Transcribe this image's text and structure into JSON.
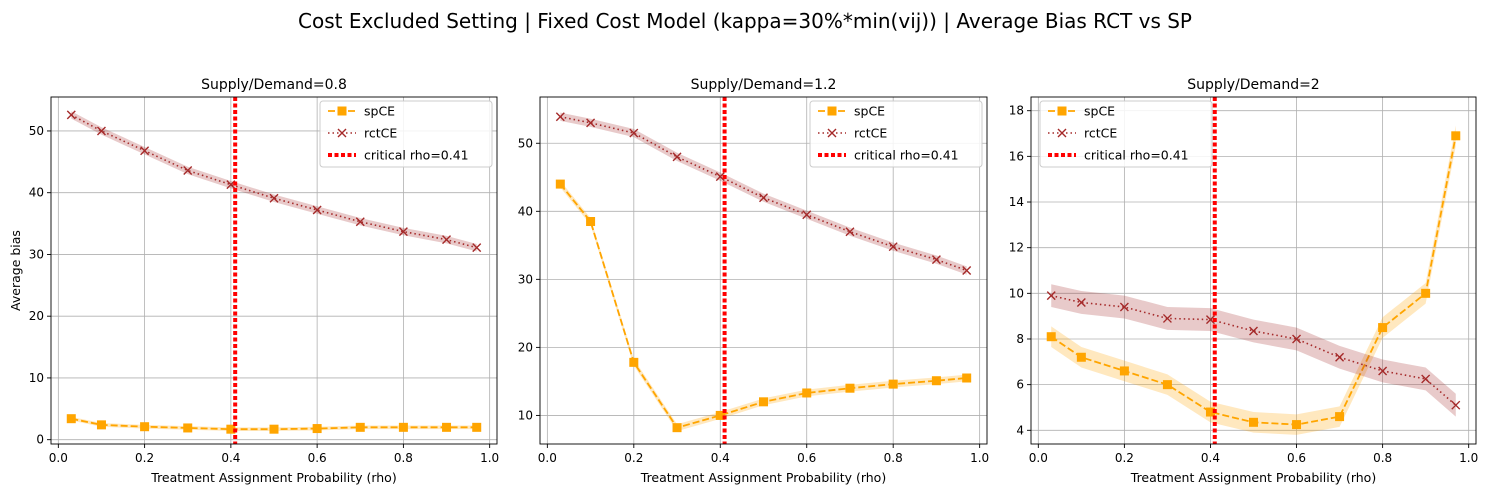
{
  "suptitle": "Cost Excluded Setting | Fixed Cost Model (kappa=30%*min(vij)) | Average Bias RCT vs SP",
  "colors": {
    "sp": "#ffa500",
    "rct": "#a52a2a",
    "critical": "#ff0000",
    "grid": "#b0b0b0"
  },
  "chart_data": [
    {
      "type": "line",
      "title": "Supply/Demand=0.8",
      "xlabel": "Treatment Assignment Probability (rho)",
      "ylabel": "Average bias",
      "xlim": [
        -0.017,
        1.017
      ],
      "ylim": [
        -0.7,
        55.5
      ],
      "xticks": [
        0.0,
        0.2,
        0.4,
        0.6,
        0.8,
        1.0
      ],
      "xtick_labels": [
        "0.0",
        "0.2",
        "0.4",
        "0.6",
        "0.8",
        "1.0"
      ],
      "yticks": [
        0,
        10,
        20,
        30,
        40,
        50
      ],
      "ytick_labels": [
        "0",
        "10",
        "20",
        "30",
        "40",
        "50"
      ],
      "grid": true,
      "legend_position": "top-right",
      "x": [
        0.03,
        0.1,
        0.2,
        0.3,
        0.4,
        0.5,
        0.6,
        0.7,
        0.8,
        0.9,
        0.97
      ],
      "series": [
        {
          "name": "spCE",
          "values": [
            3.4,
            2.4,
            2.1,
            1.9,
            1.7,
            1.7,
            1.8,
            2.0,
            2.0,
            2.0,
            2.0
          ],
          "band": 0.3
        },
        {
          "name": "rctCE",
          "values": [
            52.6,
            50.0,
            46.8,
            43.6,
            41.3,
            39.1,
            37.2,
            35.3,
            33.7,
            32.4,
            31.1
          ],
          "band": 0.6
        }
      ],
      "critical": {
        "name": "critical rho=0.41",
        "x": 0.41
      }
    },
    {
      "type": "line",
      "title": "Supply/Demand=1.2",
      "xlabel": "Treatment Assignment Probability (rho)",
      "ylabel": "",
      "xlim": [
        -0.017,
        1.017
      ],
      "ylim": [
        5.8,
        56.8
      ],
      "xticks": [
        0.0,
        0.2,
        0.4,
        0.6,
        0.8,
        1.0
      ],
      "xtick_labels": [
        "0.0",
        "0.2",
        "0.4",
        "0.6",
        "0.8",
        "1.0"
      ],
      "yticks": [
        10,
        20,
        30,
        40,
        50
      ],
      "ytick_labels": [
        "10",
        "20",
        "30",
        "40",
        "50"
      ],
      "grid": true,
      "legend_position": "top-right",
      "x": [
        0.03,
        0.1,
        0.2,
        0.3,
        0.4,
        0.5,
        0.6,
        0.7,
        0.8,
        0.9,
        0.97
      ],
      "series": [
        {
          "name": "spCE",
          "values": [
            44.0,
            38.5,
            17.8,
            8.2,
            10.0,
            12.0,
            13.3,
            14.0,
            14.6,
            15.1,
            15.5
          ],
          "band": 0.5
        },
        {
          "name": "rctCE",
          "values": [
            53.9,
            53.0,
            51.5,
            48.0,
            45.1,
            42.0,
            39.5,
            37.0,
            34.8,
            32.9,
            31.3
          ],
          "band": 0.6
        }
      ],
      "critical": {
        "name": "critical rho=0.41",
        "x": 0.41
      }
    },
    {
      "type": "line",
      "title": "Supply/Demand=2",
      "xlabel": "Treatment Assignment Probability (rho)",
      "ylabel": "",
      "xlim": [
        -0.017,
        1.017
      ],
      "ylim": [
        3.4,
        18.6
      ],
      "xticks": [
        0.0,
        0.2,
        0.4,
        0.6,
        0.8,
        1.0
      ],
      "xtick_labels": [
        "0.0",
        "0.2",
        "0.4",
        "0.6",
        "0.8",
        "1.0"
      ],
      "yticks": [
        4,
        6,
        8,
        10,
        12,
        14,
        16,
        18
      ],
      "ytick_labels": [
        "4",
        "6",
        "8",
        "10",
        "12",
        "14",
        "16",
        "18"
      ],
      "grid": true,
      "legend_position": "top-left",
      "x": [
        0.03,
        0.1,
        0.2,
        0.3,
        0.4,
        0.5,
        0.6,
        0.7,
        0.8,
        0.9,
        0.97
      ],
      "series": [
        {
          "name": "spCE",
          "values": [
            8.1,
            7.2,
            6.6,
            6.0,
            4.8,
            4.35,
            4.25,
            4.6,
            8.5,
            10.0,
            16.9
          ],
          "band": 0.45
        },
        {
          "name": "rctCE",
          "values": [
            9.9,
            9.6,
            9.4,
            8.9,
            8.85,
            8.35,
            8.0,
            7.2,
            6.6,
            6.25,
            5.1
          ],
          "band": 0.5
        }
      ],
      "critical": {
        "name": "critical rho=0.41",
        "x": 0.41
      }
    }
  ]
}
